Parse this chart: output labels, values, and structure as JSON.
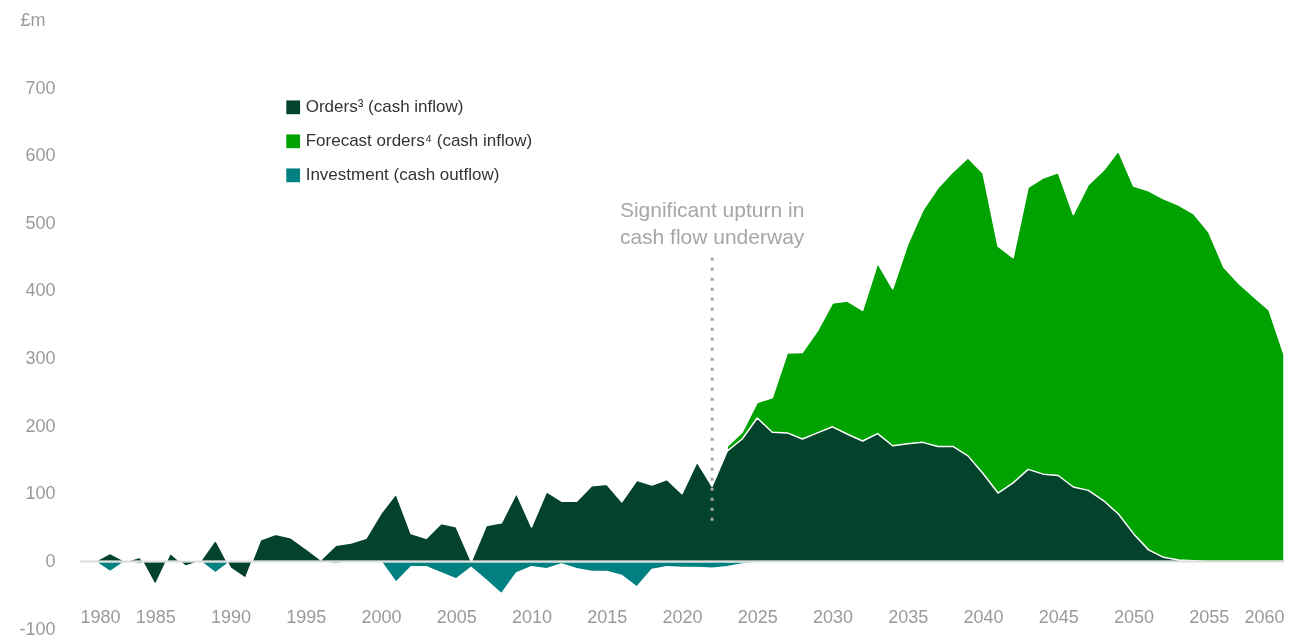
{
  "chart_data": {
    "type": "area",
    "ylabel": "£m",
    "ylim": [
      -100,
      700
    ],
    "yticks": [
      -100,
      0,
      100,
      200,
      300,
      400,
      500,
      600,
      700
    ],
    "xlim": [
      1980,
      2060
    ],
    "xticks": [
      1980,
      1985,
      1990,
      1995,
      2000,
      2005,
      2010,
      2015,
      2020,
      2025,
      2030,
      2035,
      2040,
      2045,
      2050,
      2055,
      2060
    ],
    "legend": "top left",
    "series": [
      {
        "name": "Orders³ (cash inflow)",
        "color": "#03432b",
        "x": [
          1981,
          1982,
          1983,
          1984,
          1985,
          1986,
          1987,
          1988,
          1989,
          1990,
          1991,
          1992,
          1993,
          1994,
          1995,
          1996,
          1997,
          1998,
          1999,
          2000,
          2001,
          2002,
          2003,
          2004,
          2005,
          2006,
          2007,
          2008,
          2009,
          2010,
          2011,
          2012,
          2013,
          2014,
          2015,
          2016,
          2017,
          2018,
          2019,
          2020,
          2021,
          2022,
          2023,
          2024,
          2025,
          2026,
          2027,
          2028,
          2029,
          2030,
          2031,
          2032,
          2033,
          2034,
          2035,
          2036,
          2037,
          2038,
          2039,
          2040,
          2041,
          2042,
          2043,
          2044,
          2045,
          2046,
          2047,
          2048,
          2049,
          2050,
          2051,
          2052,
          2053,
          2054,
          2055,
          2056,
          2057,
          2058,
          2059,
          2060
        ],
        "values": [
          0,
          12,
          0,
          6,
          -35,
          12,
          -7,
          0,
          32,
          -10,
          -25,
          32,
          40,
          35,
          19,
          2,
          24,
          27,
          34,
          71,
          100,
          41,
          34,
          56,
          51,
          0,
          53,
          57,
          101,
          51,
          103,
          89,
          89,
          112,
          114,
          88,
          120,
          113,
          121,
          100,
          147,
          111,
          163,
          181,
          212,
          191,
          190,
          181,
          190,
          199,
          188,
          178,
          189,
          171,
          174,
          176,
          170,
          170,
          156,
          130,
          101,
          116,
          136,
          129,
          127,
          110,
          105,
          90,
          70,
          41,
          17,
          6,
          2,
          1,
          0,
          0,
          0,
          0,
          0,
          0
        ]
      },
      {
        "name": "Forecast orders⁴ (cash inflow)",
        "color": "#00a200",
        "x": [
          2023,
          2024,
          2025,
          2026,
          2027,
          2028,
          2029,
          2030,
          2031,
          2032,
          2033,
          2034,
          2035,
          2036,
          2037,
          2038,
          2039,
          2040,
          2041,
          2042,
          2043,
          2044,
          2045,
          2046,
          2047,
          2048,
          2049,
          2050,
          2051,
          2052,
          2053,
          2054,
          2055,
          2056,
          2057,
          2058,
          2059,
          2060
        ],
        "values": [
          170,
          191,
          235,
          242,
          308,
          309,
          341,
          382,
          385,
          371,
          441,
          403,
          469,
          519,
          552,
          576,
          597,
          574,
          466,
          449,
          553,
          567,
          575,
          513,
          557,
          578,
          607,
          555,
          548,
          536,
          527,
          514,
          487,
          435,
          411,
          391,
          372,
          306
        ]
      },
      {
        "name": "Investment (cash outflow)",
        "color": "#008080",
        "x": [
          1981,
          1982,
          1983,
          1984,
          1985,
          1986,
          1987,
          1988,
          1989,
          1990,
          1991,
          1992,
          1993,
          1994,
          1995,
          1996,
          1997,
          1998,
          1999,
          2000,
          2001,
          2002,
          2003,
          2004,
          2005,
          2006,
          2007,
          2008,
          2009,
          2010,
          2011,
          2012,
          2013,
          2014,
          2015,
          2016,
          2017,
          2018,
          2019,
          2020,
          2021,
          2022,
          2023,
          2024,
          2025,
          2026,
          2027,
          2028
        ],
        "values": [
          0,
          -15,
          0,
          -4,
          0,
          0,
          0,
          0,
          -17,
          0,
          -2,
          0,
          0,
          0,
          0,
          0,
          -4,
          0,
          0,
          0,
          -31,
          -8,
          -8,
          -17,
          -26,
          -9,
          -28,
          -48,
          -17,
          -8,
          -11,
          -4,
          -11,
          -15,
          -15,
          -21,
          -38,
          -12,
          -8,
          -9,
          -9,
          -10,
          -8,
          -4,
          -2,
          -1,
          0,
          0
        ]
      }
    ],
    "ref_lines": [
      {
        "axis": "y",
        "value": 0,
        "color": "#dddddd"
      },
      {
        "axis": "x",
        "value": 2022,
        "label": "Significant upturn in\ncash flow underway",
        "color": "#a6a6a6",
        "line_style": "dotted"
      }
    ]
  }
}
